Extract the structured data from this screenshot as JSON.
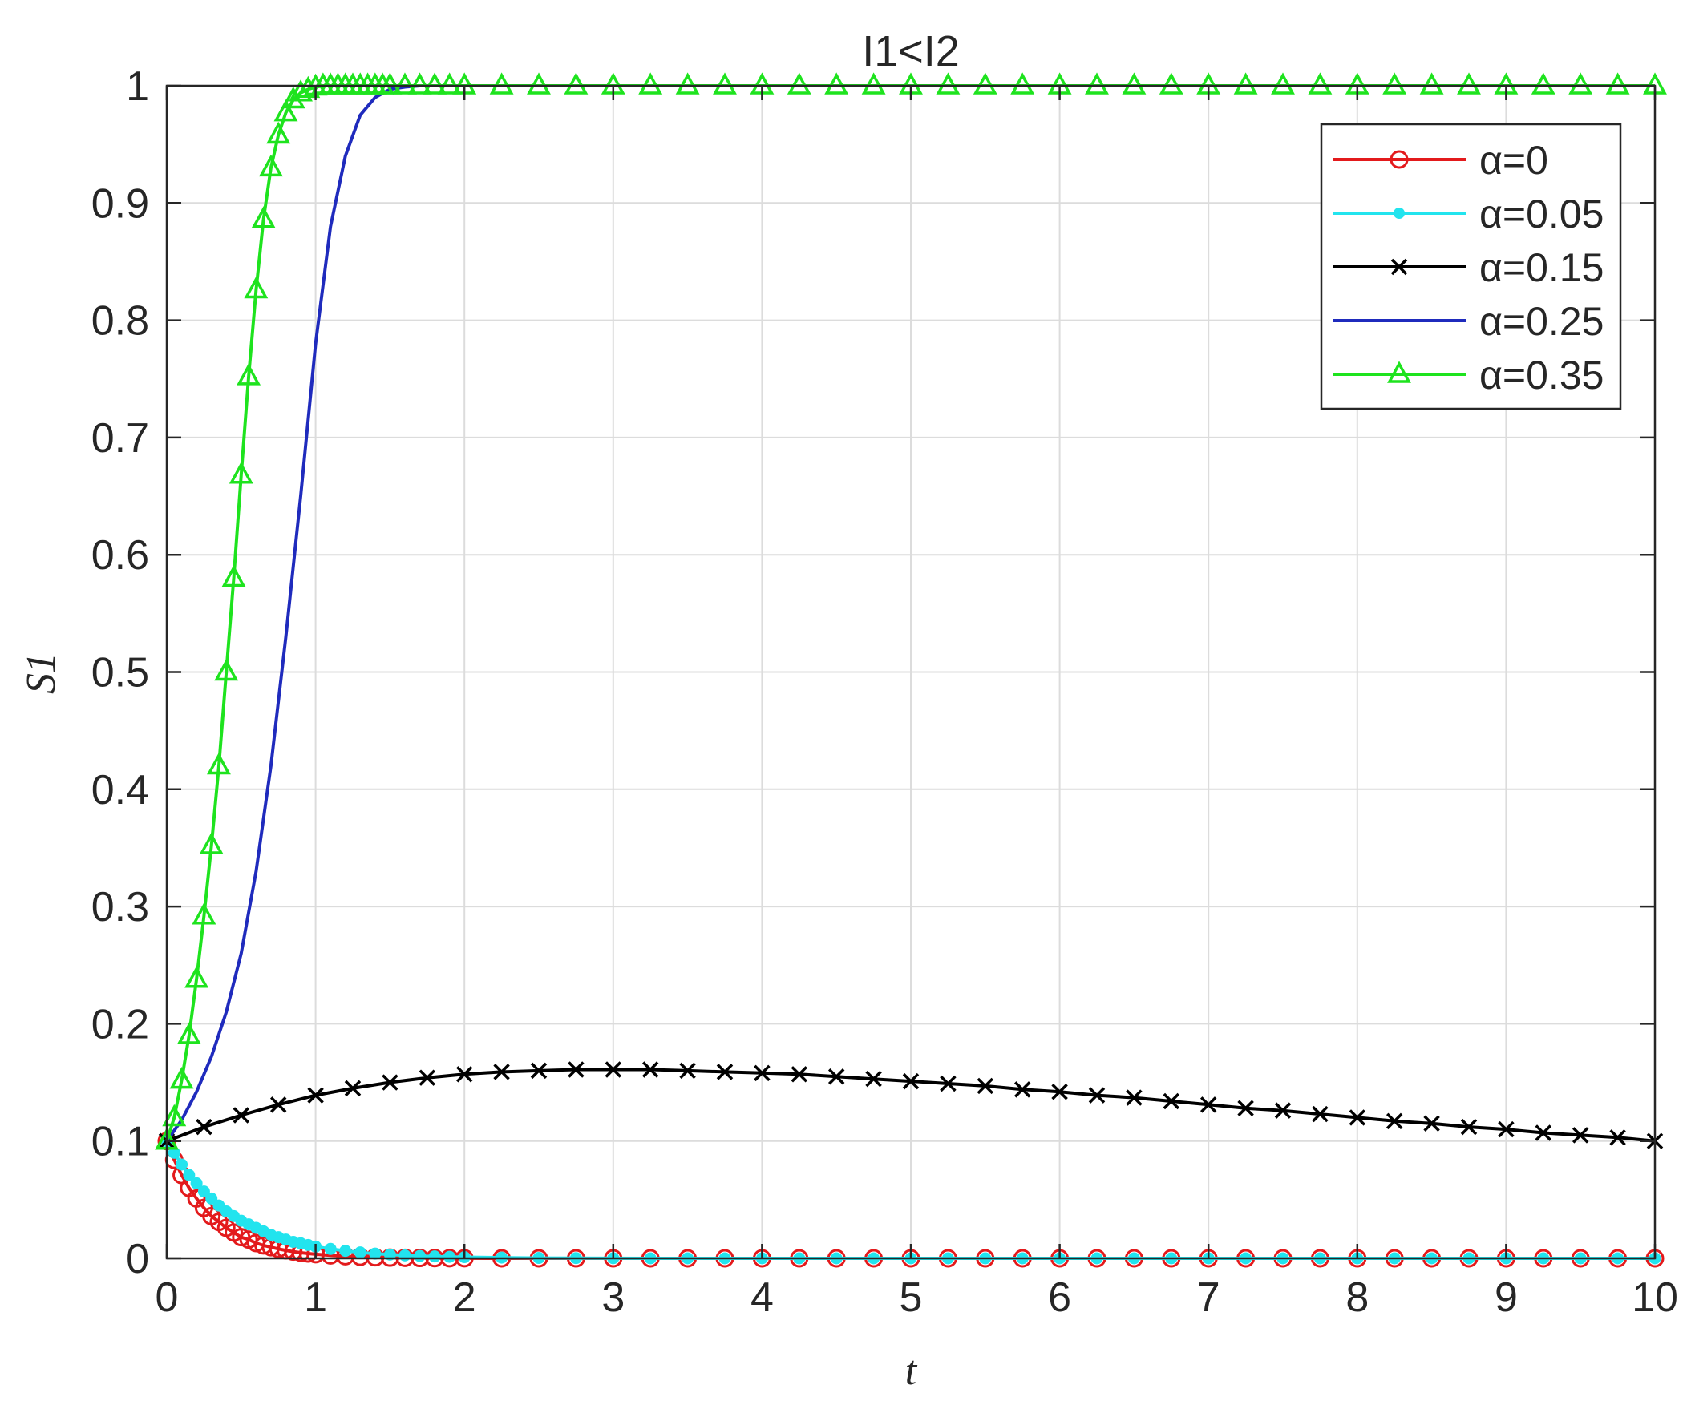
{
  "chart_data": {
    "type": "line",
    "title": "I1<I2",
    "xlabel": "t",
    "ylabel": "S1",
    "xlim": [
      0,
      10
    ],
    "ylim": [
      0,
      1
    ],
    "xticks": [
      0,
      1,
      2,
      3,
      4,
      5,
      6,
      7,
      8,
      9,
      10
    ],
    "yticks": [
      0,
      0.1,
      0.2,
      0.3,
      0.4,
      0.5,
      0.6,
      0.7,
      0.8,
      0.9,
      1
    ],
    "xtick_labels": [
      "0",
      "1",
      "2",
      "3",
      "4",
      "5",
      "6",
      "7",
      "8",
      "9",
      "10"
    ],
    "ytick_labels": [
      "0",
      "0.1",
      "0.2",
      "0.3",
      "0.4",
      "0.5",
      "0.6",
      "0.7",
      "0.8",
      "0.9",
      "1"
    ],
    "grid": true,
    "legend_position": "top-right",
    "series": [
      {
        "name": "α=0",
        "color": "#e31a1c",
        "marker": "circle",
        "x": [
          0,
          0.05,
          0.1,
          0.15,
          0.2,
          0.25,
          0.3,
          0.35,
          0.4,
          0.45,
          0.5,
          0.55,
          0.6,
          0.65,
          0.7,
          0.75,
          0.8,
          0.85,
          0.9,
          0.95,
          1.0,
          1.1,
          1.2,
          1.3,
          1.4,
          1.5,
          1.6,
          1.7,
          1.8,
          1.9,
          2.0,
          2.25,
          2.5,
          2.75,
          3.0,
          3.25,
          3.5,
          3.75,
          4.0,
          4.25,
          4.5,
          4.75,
          5.0,
          5.25,
          5.5,
          5.75,
          6.0,
          6.25,
          6.5,
          6.75,
          7.0,
          7.25,
          7.5,
          7.75,
          8.0,
          8.25,
          8.5,
          8.75,
          9.0,
          9.25,
          9.5,
          9.75,
          10.0
        ],
        "y": [
          0.1,
          0.084,
          0.071,
          0.06,
          0.051,
          0.043,
          0.036,
          0.031,
          0.026,
          0.022,
          0.018,
          0.016,
          0.013,
          0.011,
          0.0095,
          0.008,
          0.0068,
          0.0057,
          0.0048,
          0.0041,
          0.0035,
          0.0025,
          0.0018,
          0.0013,
          0.0009,
          0.0006,
          0.0004,
          0.0003,
          0.0002,
          0.0001,
          0.0001,
          0,
          0,
          0,
          0,
          0,
          0,
          0,
          0,
          0,
          0,
          0,
          0,
          0,
          0,
          0,
          0,
          0,
          0,
          0,
          0,
          0,
          0,
          0,
          0,
          0,
          0,
          0,
          0,
          0,
          0,
          0,
          0
        ]
      },
      {
        "name": "α=0.05",
        "color": "#22e4ee",
        "marker": "dot",
        "x": [
          0,
          0.05,
          0.1,
          0.15,
          0.2,
          0.25,
          0.3,
          0.35,
          0.4,
          0.45,
          0.5,
          0.55,
          0.6,
          0.65,
          0.7,
          0.75,
          0.8,
          0.85,
          0.9,
          0.95,
          1.0,
          1.1,
          1.2,
          1.3,
          1.4,
          1.5,
          1.6,
          1.7,
          1.8,
          1.9,
          2.0,
          2.25,
          2.5,
          2.75,
          3.0,
          3.25,
          3.5,
          3.75,
          4.0,
          4.25,
          4.5,
          4.75,
          5.0,
          5.25,
          5.5,
          5.75,
          6.0,
          6.25,
          6.5,
          6.75,
          7.0,
          7.25,
          7.5,
          7.75,
          8.0,
          8.25,
          8.5,
          8.75,
          9.0,
          9.25,
          9.5,
          9.75,
          10.0
        ],
        "y": [
          0.1,
          0.09,
          0.08,
          0.071,
          0.064,
          0.057,
          0.051,
          0.045,
          0.04,
          0.036,
          0.032,
          0.029,
          0.026,
          0.023,
          0.02,
          0.018,
          0.016,
          0.014,
          0.0128,
          0.0114,
          0.01,
          0.008,
          0.0064,
          0.005,
          0.004,
          0.0032,
          0.0025,
          0.002,
          0.0016,
          0.0013,
          0.001,
          0.0006,
          0.0003,
          0.0002,
          0.0001,
          0,
          0,
          0,
          0,
          0,
          0,
          0,
          0,
          0,
          0,
          0,
          0,
          0,
          0,
          0,
          0,
          0,
          0,
          0,
          0,
          0,
          0,
          0,
          0,
          0,
          0,
          0,
          0
        ]
      },
      {
        "name": "α=0.15",
        "color": "#000000",
        "marker": "x",
        "x": [
          0,
          0.25,
          0.5,
          0.75,
          1.0,
          1.25,
          1.5,
          1.75,
          2.0,
          2.25,
          2.5,
          2.75,
          3.0,
          3.25,
          3.5,
          3.75,
          4.0,
          4.25,
          4.5,
          4.75,
          5.0,
          5.25,
          5.5,
          5.75,
          6.0,
          6.25,
          6.5,
          6.75,
          7.0,
          7.25,
          7.5,
          7.75,
          8.0,
          8.25,
          8.5,
          8.75,
          9.0,
          9.25,
          9.5,
          9.75,
          10.0
        ],
        "y": [
          0.1,
          0.112,
          0.122,
          0.131,
          0.139,
          0.145,
          0.15,
          0.154,
          0.157,
          0.159,
          0.16,
          0.161,
          0.161,
          0.161,
          0.16,
          0.159,
          0.158,
          0.157,
          0.155,
          0.153,
          0.151,
          0.149,
          0.147,
          0.144,
          0.142,
          0.139,
          0.137,
          0.134,
          0.131,
          0.128,
          0.126,
          0.123,
          0.12,
          0.117,
          0.115,
          0.112,
          0.11,
          0.107,
          0.105,
          0.103,
          0.1
        ]
      },
      {
        "name": "α=0.25",
        "color": "#1f2bbd",
        "marker": "none",
        "x": [
          0,
          0.1,
          0.2,
          0.3,
          0.4,
          0.5,
          0.6,
          0.7,
          0.8,
          0.9,
          1.0,
          1.1,
          1.2,
          1.3,
          1.4,
          1.5,
          1.6,
          1.7,
          1.8,
          1.9,
          2.0,
          2.5,
          3.0,
          4.0,
          5.0,
          6.0,
          7.0,
          8.0,
          9.0,
          10.0
        ],
        "y": [
          0.1,
          0.118,
          0.142,
          0.172,
          0.21,
          0.26,
          0.33,
          0.42,
          0.53,
          0.65,
          0.78,
          0.88,
          0.94,
          0.975,
          0.99,
          0.997,
          0.999,
          1.0,
          1.0,
          1.0,
          1.0,
          1.0,
          1.0,
          1.0,
          1.0,
          1.0,
          1.0,
          1.0,
          1.0,
          1.0
        ]
      },
      {
        "name": "α=0.35",
        "color": "#1ee31e",
        "marker": "triangle",
        "x": [
          0,
          0.05,
          0.1,
          0.15,
          0.2,
          0.25,
          0.3,
          0.35,
          0.4,
          0.45,
          0.5,
          0.55,
          0.6,
          0.65,
          0.7,
          0.75,
          0.8,
          0.85,
          0.9,
          0.95,
          1.0,
          1.05,
          1.1,
          1.15,
          1.2,
          1.25,
          1.3,
          1.35,
          1.4,
          1.45,
          1.5,
          1.6,
          1.7,
          1.8,
          1.9,
          2.0,
          2.25,
          2.5,
          2.75,
          3.0,
          3.25,
          3.5,
          3.75,
          4.0,
          4.25,
          4.5,
          4.75,
          5.0,
          5.25,
          5.5,
          5.75,
          6.0,
          6.25,
          6.5,
          6.75,
          7.0,
          7.25,
          7.5,
          7.75,
          8.0,
          8.25,
          8.5,
          8.75,
          9.0,
          9.25,
          9.5,
          9.75,
          10.0
        ],
        "y": [
          0.1,
          0.12,
          0.152,
          0.19,
          0.238,
          0.292,
          0.352,
          0.42,
          0.5,
          0.58,
          0.668,
          0.752,
          0.826,
          0.886,
          0.93,
          0.958,
          0.977,
          0.988,
          0.994,
          0.997,
          0.999,
          1.0,
          1.0,
          1.0,
          1.0,
          1.0,
          1.0,
          1.0,
          1.0,
          1.0,
          1.0,
          1.0,
          1.0,
          1.0,
          1.0,
          1.0,
          1.0,
          1.0,
          1.0,
          1.0,
          1.0,
          1.0,
          1.0,
          1.0,
          1.0,
          1.0,
          1.0,
          1.0,
          1.0,
          1.0,
          1.0,
          1.0,
          1.0,
          1.0,
          1.0,
          1.0,
          1.0,
          1.0,
          1.0,
          1.0,
          1.0,
          1.0,
          1.0,
          1.0,
          1.0,
          1.0,
          1.0,
          1.0
        ]
      }
    ]
  }
}
